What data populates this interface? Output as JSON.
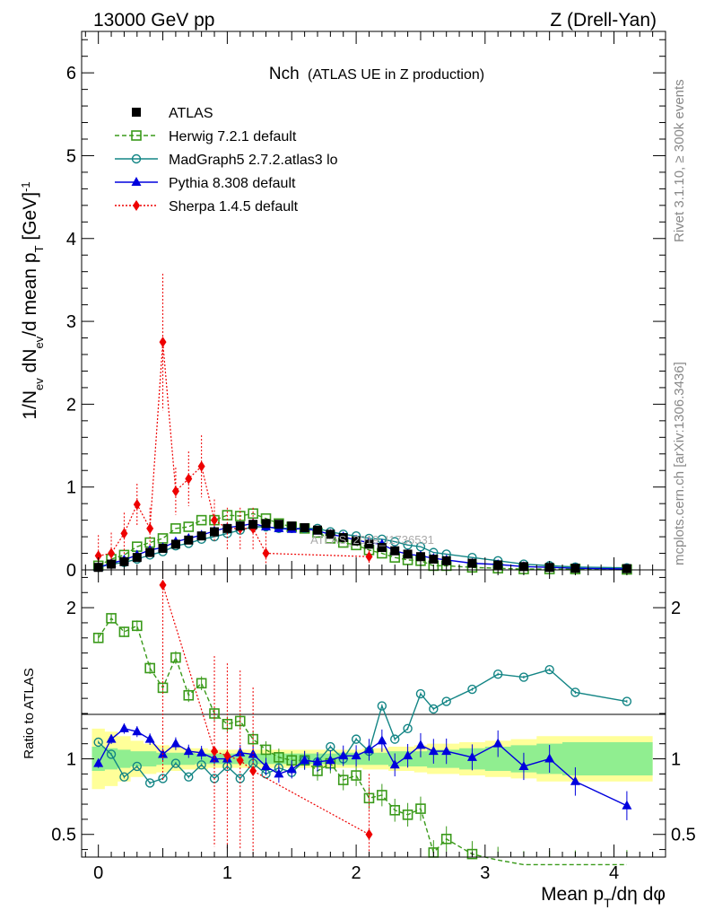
{
  "header": {
    "energy": "13000 GeV pp",
    "process": "Z (Drell-Yan)"
  },
  "side_text": {
    "rivet": "Rivet 3.1.10, ≥ 300k events",
    "mcplots": "mcplots.cern.ch [arXiv:1306.3436]"
  },
  "watermark": "ATLAS_2019_I1736531",
  "colors": {
    "atlas": "#000000",
    "herwig": "#3a9a1a",
    "madgraph": "#138585",
    "pythia": "#0000dd",
    "sherpa": "#ee0000",
    "band_inner": "#90ee90",
    "band_outer": "#ffff99"
  },
  "chart_data": [
    {
      "panel": "main",
      "type": "scatter",
      "title_main": "Nch",
      "title_sub": "(ATLAS UE in Z production)",
      "xlabel": "Mean pT/dη dφ",
      "ylabel": "1/Nev dNev/d mean pT [GeV]^-1",
      "xlim": [
        -0.13,
        4.4
      ],
      "ylim": [
        0,
        6.5
      ],
      "yticks": [
        "0",
        "1",
        "2",
        "3",
        "4",
        "5",
        "6"
      ],
      "xticks": [
        "0",
        "1",
        "2",
        "3",
        "4"
      ],
      "legend": [
        {
          "key": "atlas",
          "label": "ATLAS"
        },
        {
          "key": "herwig",
          "label": "Herwig 7.2.1 default"
        },
        {
          "key": "madgraph",
          "label": "MadGraph5 2.7.2.atlas3 lo"
        },
        {
          "key": "pythia",
          "label": "Pythia 8.308 default"
        },
        {
          "key": "sherpa",
          "label": "Sherpa 1.4.5 default"
        }
      ],
      "x": [
        0.0,
        0.1,
        0.2,
        0.3,
        0.4,
        0.5,
        0.6,
        0.7,
        0.8,
        0.9,
        1.0,
        1.1,
        1.2,
        1.3,
        1.4,
        1.5,
        1.6,
        1.7,
        1.8,
        1.9,
        2.0,
        2.1,
        2.2,
        2.3,
        2.4,
        2.5,
        2.6,
        2.7,
        2.9,
        3.1,
        3.3,
        3.5,
        3.7,
        4.1
      ],
      "series": [
        {
          "name": "ATLAS",
          "values": [
            0.03,
            0.07,
            0.1,
            0.15,
            0.21,
            0.26,
            0.31,
            0.36,
            0.41,
            0.46,
            0.5,
            0.53,
            0.55,
            0.56,
            0.55,
            0.53,
            0.51,
            0.48,
            0.43,
            0.39,
            0.35,
            0.31,
            0.27,
            0.23,
            0.19,
            0.16,
            0.13,
            0.11,
            0.08,
            0.06,
            0.04,
            0.03,
            0.02,
            0.015
          ]
        },
        {
          "name": "Herwig 7.2.1 default",
          "values": [
            0.05,
            0.13,
            0.18,
            0.28,
            0.33,
            0.38,
            0.5,
            0.52,
            0.6,
            0.6,
            0.66,
            0.65,
            0.68,
            0.62,
            0.56,
            0.52,
            0.5,
            0.45,
            0.38,
            0.33,
            0.3,
            0.24,
            0.2,
            0.15,
            0.12,
            0.11,
            0.05,
            0.05,
            0.03,
            0.02,
            0.01,
            0.01,
            0.01,
            0.005
          ]
        },
        {
          "name": "MadGraph5 2.7.2.atlas3 lo",
          "values": [
            0.03,
            0.07,
            0.09,
            0.13,
            0.18,
            0.22,
            0.29,
            0.32,
            0.37,
            0.4,
            0.44,
            0.48,
            0.52,
            0.52,
            0.5,
            0.5,
            0.5,
            0.5,
            0.46,
            0.43,
            0.41,
            0.38,
            0.37,
            0.34,
            0.3,
            0.28,
            0.21,
            0.19,
            0.15,
            0.11,
            0.07,
            0.05,
            0.035,
            0.025
          ]
        },
        {
          "name": "Pythia 8.308 default",
          "values": [
            0.03,
            0.08,
            0.12,
            0.18,
            0.24,
            0.27,
            0.34,
            0.38,
            0.42,
            0.47,
            0.51,
            0.53,
            0.56,
            0.52,
            0.5,
            0.49,
            0.5,
            0.47,
            0.43,
            0.4,
            0.36,
            0.33,
            0.31,
            0.23,
            0.19,
            0.17,
            0.14,
            0.12,
            0.08,
            0.065,
            0.04,
            0.03,
            0.02,
            0.012
          ]
        },
        {
          "name": "Sherpa 1.4.5 default",
          "values": [
            0.17,
            0.2,
            0.44,
            0.79,
            0.5,
            2.75,
            0.95,
            1.1,
            1.25,
            0.6,
            0.5,
            0.5,
            0.5,
            0.2,
            null,
            null,
            null,
            null,
            null,
            null,
            null,
            0.16,
            null,
            null,
            null,
            null,
            null,
            null,
            null,
            null,
            null,
            null,
            null,
            null
          ]
        }
      ]
    },
    {
      "panel": "ratio",
      "type": "line",
      "ylabel": "Ratio to ATLAS",
      "xlabel": "Mean pT/dη dφ",
      "xlim": [
        -0.13,
        4.4
      ],
      "ylim": [
        0.35,
        2.25
      ],
      "yticks": [
        "0.5",
        "1",
        "2"
      ],
      "xticks": [
        "0",
        "1",
        "2",
        "3",
        "4"
      ],
      "band_inner_halfwidth": [
        0.08,
        0.07,
        0.06,
        0.05,
        0.05,
        0.04,
        0.04,
        0.04,
        0.035,
        0.035,
        0.035,
        0.035,
        0.035,
        0.035,
        0.035,
        0.035,
        0.035,
        0.035,
        0.035,
        0.04,
        0.04,
        0.04,
        0.04,
        0.05,
        0.05,
        0.05,
        0.06,
        0.06,
        0.07,
        0.08,
        0.09,
        0.1,
        0.11,
        0.11
      ],
      "band_outer_halfwidth": [
        0.2,
        0.18,
        0.15,
        0.12,
        0.1,
        0.09,
        0.08,
        0.07,
        0.07,
        0.06,
        0.06,
        0.06,
        0.06,
        0.06,
        0.06,
        0.06,
        0.06,
        0.06,
        0.06,
        0.06,
        0.06,
        0.07,
        0.07,
        0.08,
        0.08,
        0.09,
        0.1,
        0.1,
        0.11,
        0.12,
        0.13,
        0.15,
        0.15,
        0.15
      ],
      "series": [
        {
          "name": "Herwig 7.2.1 default",
          "values": [
            1.8,
            1.93,
            1.84,
            1.88,
            1.6,
            1.47,
            1.67,
            1.42,
            1.5,
            1.3,
            1.23,
            1.25,
            1.13,
            1.06,
            1.01,
            0.99,
            0.99,
            0.92,
            0.97,
            0.86,
            0.89,
            0.74,
            0.76,
            0.66,
            0.63,
            0.67,
            0.38,
            0.47,
            0.37,
            0.33,
            0.3,
            0.3,
            0.3,
            0.3
          ]
        },
        {
          "name": "MadGraph5 2.7.2.atlas3 lo",
          "values": [
            1.11,
            1.03,
            0.88,
            0.95,
            0.84,
            0.87,
            0.97,
            0.88,
            0.96,
            0.87,
            0.95,
            0.87,
            0.97,
            0.9,
            0.94,
            0.91,
            0.99,
            0.98,
            1.08,
            1.0,
            1.13,
            1.05,
            1.35,
            1.13,
            1.2,
            1.43,
            1.33,
            1.38,
            1.46,
            1.56,
            1.54,
            1.59,
            1.44,
            1.38
          ]
        },
        {
          "name": "Pythia 8.308 default",
          "values": [
            0.97,
            1.13,
            1.2,
            1.18,
            1.13,
            1.03,
            1.1,
            1.05,
            1.04,
            1.0,
            1.0,
            1.04,
            1.03,
            0.95,
            0.9,
            0.93,
            0.99,
            0.98,
            0.99,
            1.02,
            1.02,
            1.06,
            1.12,
            0.96,
            1.02,
            1.09,
            1.05,
            1.05,
            1.01,
            1.1,
            0.95,
            1.0,
            0.85,
            0.69
          ]
        },
        {
          "name": "Sherpa 1.4.5 default",
          "values": [
            null,
            null,
            null,
            null,
            null,
            2.15,
            null,
            null,
            null,
            1.05,
            1.02,
            0.99,
            0.92,
            null,
            null,
            null,
            null,
            null,
            null,
            null,
            null,
            0.5,
            null,
            null,
            null,
            null,
            null,
            null,
            null,
            null,
            null,
            null,
            null,
            null
          ]
        }
      ]
    }
  ]
}
